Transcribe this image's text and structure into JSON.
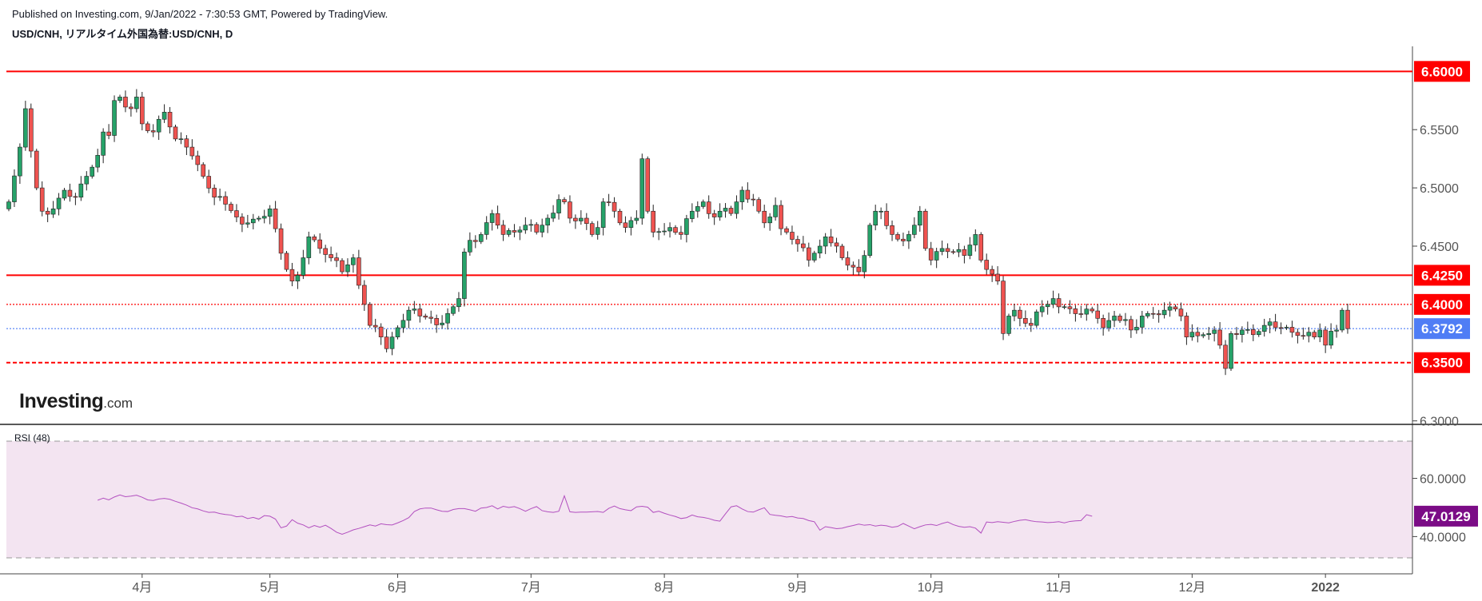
{
  "header": {
    "published": "Published on Investing.com, 9/Jan/2022 - 7:30:53 GMT, Powered by TradingView.",
    "symbol": "USD/CNH, リアルタイム外国為替:USD/CNH, D"
  },
  "logo": {
    "main": "Investing",
    "suffix": ".com"
  },
  "colors": {
    "up": "#26a269",
    "down": "#ef5350",
    "hline": "#ff0000",
    "current": "#4f7df5",
    "rsi_line": "#b24fbf",
    "rsi_bg": "#f3e4f1",
    "rsi_tag": "#7b0c86"
  },
  "chart_data": [
    {
      "type": "candlestick",
      "title": "USD/CNH",
      "x_tick_labels": [
        "4月",
        "5月",
        "6月",
        "7月",
        "8月",
        "9月",
        "10月",
        "11月",
        "12月",
        "2022"
      ],
      "x_tick_bar_index": [
        24,
        47,
        70,
        94,
        118,
        142,
        166,
        189,
        213,
        237
      ],
      "y_ticks": [
        "6.3000",
        "6.4500",
        "6.5000",
        "6.5500"
      ],
      "ylim": [
        6.297,
        6.6215
      ],
      "levels": [
        {
          "label": "6.6000",
          "value": 6.6,
          "style": "solid",
          "color": "#ff0000"
        },
        {
          "label": "6.4250",
          "value": 6.425,
          "style": "solid",
          "color": "#ff0000"
        },
        {
          "label": "6.4000",
          "value": 6.4,
          "style": "dotted",
          "color": "#ff0000"
        },
        {
          "label": "6.3792",
          "value": 6.3792,
          "style": "dotted",
          "color": "#4f7df5"
        },
        {
          "label": "6.3500",
          "value": 6.35,
          "style": "dashed",
          "color": "#ff0000"
        }
      ],
      "waypoints": [
        [
          0,
          6.488
        ],
        [
          2,
          6.535
        ],
        [
          3,
          6.568
        ],
        [
          5,
          6.5
        ],
        [
          6,
          6.48
        ],
        [
          8,
          6.482
        ],
        [
          10,
          6.498
        ],
        [
          12,
          6.492
        ],
        [
          14,
          6.51
        ],
        [
          16,
          6.528
        ],
        [
          17,
          6.548
        ],
        [
          18,
          6.545
        ],
        [
          19,
          6.575
        ],
        [
          20,
          6.578
        ],
        [
          22,
          6.568
        ],
        [
          23,
          6.578
        ],
        [
          24,
          6.555
        ],
        [
          26,
          6.548
        ],
        [
          28,
          6.565
        ],
        [
          30,
          6.542
        ],
        [
          32,
          6.535
        ],
        [
          34,
          6.52
        ],
        [
          35,
          6.51
        ],
        [
          37,
          6.492
        ],
        [
          39,
          6.486
        ],
        [
          41,
          6.475
        ],
        [
          43,
          6.47
        ],
        [
          45,
          6.474
        ],
        [
          47,
          6.482
        ],
        [
          48,
          6.465
        ],
        [
          50,
          6.43
        ],
        [
          51,
          6.42
        ],
        [
          52,
          6.425
        ],
        [
          53,
          6.44
        ],
        [
          54,
          6.458
        ],
        [
          56,
          6.448
        ],
        [
          58,
          6.44
        ],
        [
          60,
          6.428
        ],
        [
          62,
          6.44
        ],
        [
          64,
          6.4
        ],
        [
          65,
          6.382
        ],
        [
          67,
          6.372
        ],
        [
          68,
          6.362
        ],
        [
          69,
          6.372
        ],
        [
          70,
          6.38
        ],
        [
          72,
          6.395
        ],
        [
          74,
          6.39
        ],
        [
          76,
          6.388
        ],
        [
          78,
          6.384
        ],
        [
          80,
          6.398
        ],
        [
          81,
          6.405
        ],
        [
          82,
          6.445
        ],
        [
          83,
          6.455
        ],
        [
          85,
          6.46
        ],
        [
          87,
          6.478
        ],
        [
          88,
          6.468
        ],
        [
          89,
          6.46
        ],
        [
          91,
          6.462
        ],
        [
          93,
          6.468
        ],
        [
          95,
          6.462
        ],
        [
          97,
          6.474
        ],
        [
          99,
          6.49
        ],
        [
          100,
          6.488
        ],
        [
          101,
          6.474
        ],
        [
          103,
          6.474
        ],
        [
          105,
          6.46
        ],
        [
          106,
          6.466
        ],
        [
          107,
          6.488
        ],
        [
          109,
          6.48
        ],
        [
          110,
          6.47
        ],
        [
          111,
          6.466
        ],
        [
          112,
          6.472
        ],
        [
          113,
          6.474
        ],
        [
          114,
          6.525
        ],
        [
          115,
          6.48
        ],
        [
          116,
          6.462
        ],
        [
          118,
          6.463
        ],
        [
          119,
          6.466
        ],
        [
          121,
          6.46
        ],
        [
          123,
          6.48
        ],
        [
          125,
          6.488
        ],
        [
          127,
          6.475
        ],
        [
          128,
          6.48
        ],
        [
          130,
          6.478
        ],
        [
          132,
          6.498
        ],
        [
          134,
          6.49
        ],
        [
          135,
          6.48
        ],
        [
          136,
          6.47
        ],
        [
          138,
          6.485
        ],
        [
          139,
          6.465
        ],
        [
          140,
          6.462
        ],
        [
          142,
          6.452
        ],
        [
          144,
          6.438
        ],
        [
          146,
          6.45
        ],
        [
          147,
          6.458
        ],
        [
          149,
          6.45
        ],
        [
          150,
          6.44
        ],
        [
          152,
          6.432
        ],
        [
          153,
          6.428
        ],
        [
          154,
          6.442
        ],
        [
          155,
          6.468
        ],
        [
          156,
          6.48
        ],
        [
          157,
          6.48
        ],
        [
          159,
          6.46
        ],
        [
          160,
          6.456
        ],
        [
          162,
          6.46
        ],
        [
          163,
          6.468
        ],
        [
          164,
          6.48
        ],
        [
          165,
          6.448
        ],
        [
          166,
          6.438
        ],
        [
          168,
          6.448
        ],
        [
          170,
          6.445
        ],
        [
          172,
          6.442
        ],
        [
          174,
          6.46
        ],
        [
          175,
          6.438
        ],
        [
          176,
          6.43
        ],
        [
          177,
          6.426
        ],
        [
          178,
          6.42
        ],
        [
          179,
          6.375
        ],
        [
          180,
          6.39
        ],
        [
          181,
          6.395
        ],
        [
          182,
          6.388
        ],
        [
          184,
          6.382
        ],
        [
          186,
          6.398
        ],
        [
          187,
          6.4
        ],
        [
          188,
          6.405
        ],
        [
          190,
          6.398
        ],
        [
          192,
          6.392
        ],
        [
          194,
          6.396
        ],
        [
          196,
          6.388
        ],
        [
          197,
          6.38
        ],
        [
          199,
          6.39
        ],
        [
          201,
          6.387
        ],
        [
          202,
          6.378
        ],
        [
          204,
          6.39
        ],
        [
          206,
          6.392
        ],
        [
          208,
          6.395
        ],
        [
          210,
          6.396
        ],
        [
          211,
          6.39
        ],
        [
          212,
          6.372
        ],
        [
          214,
          6.373
        ],
        [
          216,
          6.375
        ],
        [
          217,
          6.378
        ],
        [
          218,
          6.365
        ],
        [
          219,
          6.345
        ],
        [
          220,
          6.375
        ],
        [
          222,
          6.378
        ],
        [
          224,
          6.374
        ],
        [
          226,
          6.382
        ],
        [
          227,
          6.385
        ],
        [
          229,
          6.38
        ],
        [
          231,
          6.376
        ],
        [
          233,
          6.373
        ],
        [
          235,
          6.372
        ],
        [
          236,
          6.378
        ],
        [
          237,
          6.365
        ],
        [
          238,
          6.377
        ],
        [
          239,
          6.378
        ],
        [
          240,
          6.395
        ],
        [
          241,
          6.3792
        ]
      ]
    },
    {
      "type": "line",
      "title": "RSI (48)",
      "current": "47.0129",
      "y_ticks": [
        "40.0000",
        "60.0000"
      ],
      "ylim": [
        27.2,
        75.8
      ],
      "band": [
        31,
        70
      ],
      "start_index": 16,
      "values": [
        52.5,
        53.2,
        52.6,
        53.6,
        54.3,
        53.7,
        53.9,
        54.2,
        53.5,
        52.6,
        52.4,
        52.9,
        53.1,
        52.8,
        52.1,
        51.5,
        50.8,
        49.9,
        49.5,
        48.8,
        48.3,
        48.4,
        47.9,
        47.6,
        47.4,
        46.8,
        47.0,
        46.2,
        46.6,
        46.0,
        47.2,
        47.0,
        46.0,
        43.0,
        43.6,
        45.8,
        44.6,
        44.0,
        43.0,
        43.8,
        43.2,
        43.9,
        42.8,
        41.5,
        40.8,
        41.5,
        42.3,
        42.8,
        43.4,
        44.0,
        43.6,
        44.4,
        44.1,
        44.0,
        44.7,
        45.5,
        46.5,
        48.6,
        49.5,
        49.8,
        49.8,
        49.2,
        48.7,
        48.6,
        49.3,
        49.6,
        49.6,
        49.2,
        48.7,
        49.8,
        50.0,
        50.6,
        49.5,
        50.4,
        50.0,
        50.3,
        49.6,
        48.7,
        49.6,
        50.3,
        48.9,
        48.5,
        48.3,
        48.7,
        54.0,
        48.5,
        48.3,
        48.4,
        48.4,
        48.5,
        48.6,
        48.3,
        49.7,
        50.5,
        49.6,
        49.2,
        48.9,
        50.2,
        50.4,
        50.1,
        48.3,
        48.7,
        48.0,
        47.4,
        46.9,
        46.2,
        46.5,
        47.4,
        46.8,
        46.6,
        46.2,
        45.6,
        45.3,
        47.8,
        50.2,
        50.6,
        49.5,
        48.6,
        48.4,
        49.2,
        49.9,
        47.6,
        47.3,
        47.1,
        46.7,
        46.9,
        46.4,
        46.2,
        45.5,
        45.1,
        42.2,
        43.4,
        43.1,
        42.7,
        42.9,
        43.4,
        43.8,
        44.3,
        43.9,
        44.1,
        43.6,
        43.9,
        43.7,
        43.2,
        43.5,
        44.5,
        43.6,
        42.7,
        43.4,
        44.0,
        44.2,
        43.8,
        44.5,
        45.0,
        44.1,
        43.5,
        43.2,
        43.4,
        42.9,
        41.2,
        45.0,
        44.8,
        45.1,
        44.9,
        44.7,
        45.2,
        45.6,
        45.8,
        45.4,
        45.1,
        45.0,
        44.8,
        44.9,
        45.1,
        44.7,
        45.2,
        45.4,
        45.5,
        47.5,
        47.0
      ]
    }
  ]
}
